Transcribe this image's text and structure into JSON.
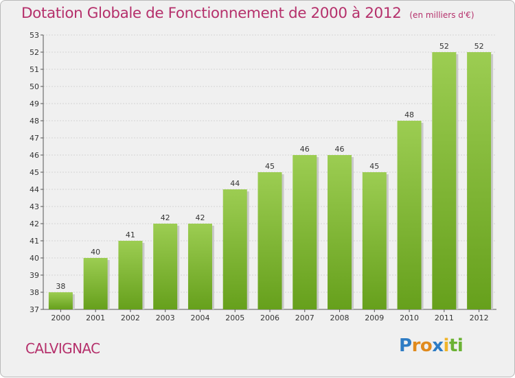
{
  "header": {
    "title": "Dotation Globale de Fonctionnement de 2000 à 2012",
    "subtitle": "(en milliers d'€)"
  },
  "footer": {
    "commune": "CALVIGNAC",
    "logo": "Proxiti"
  },
  "colors": {
    "title": "#b5306b",
    "bar_light": "#9ccd52",
    "bar_dark": "#66a01c",
    "grid": "#d3d3d3",
    "background": "#f0f0f0"
  },
  "chart_data": {
    "type": "bar",
    "title": "Dotation Globale de Fonctionnement de 2000 à 2012",
    "xlabel": "",
    "ylabel": "",
    "categories": [
      "2000",
      "2001",
      "2002",
      "2003",
      "2004",
      "2005",
      "2006",
      "2007",
      "2008",
      "2009",
      "2010",
      "2011",
      "2012"
    ],
    "values": [
      38,
      40,
      41,
      42,
      42,
      44,
      45,
      46,
      46,
      45,
      48,
      52,
      52
    ],
    "data_labels": [
      "38",
      "40",
      "41",
      "42",
      "42",
      "44",
      "45",
      "46",
      "46",
      "45",
      "48",
      "52",
      "52"
    ],
    "ylim": [
      37,
      53
    ],
    "yticks": [
      "37",
      "38",
      "39",
      "40",
      "41",
      "42",
      "43",
      "44",
      "45",
      "46",
      "47",
      "48",
      "49",
      "50",
      "51",
      "52",
      "53"
    ],
    "grid": true,
    "legend": "none"
  }
}
